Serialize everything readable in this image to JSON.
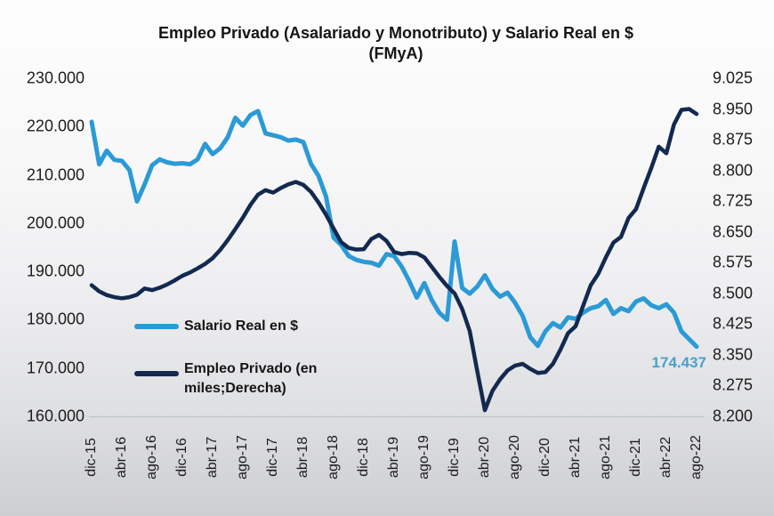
{
  "title": {
    "line1": "Empleo Privado (Asalariado y Monotributo) y Salario Real en $",
    "line2": "(FMyA)"
  },
  "legend": {
    "salario_label": "Salario Real en $",
    "empleo_label_line1": "Empleo Privado (en",
    "empleo_label_line2": "miles;Derecha)"
  },
  "annotation": {
    "last_value_label": "174.437"
  },
  "colors": {
    "salario": "#2b9ad6",
    "empleo": "#13294f",
    "annotation": "#4aa0cd",
    "axis_text": "#1c1c1c",
    "baseline": "#b9babd"
  },
  "axes": {
    "left_ticks": [
      "230.000",
      "220.000",
      "210.000",
      "200.000",
      "190.000",
      "180.000",
      "170.000",
      "160.000"
    ],
    "right_ticks": [
      "9.025",
      "8.950",
      "8.875",
      "8.800",
      "8.725",
      "8.650",
      "8.575",
      "8.500",
      "8.425",
      "8.350",
      "8.275",
      "8.200"
    ],
    "x_ticks": [
      "dic-15",
      "abr-16",
      "ago-16",
      "dic-16",
      "abr-17",
      "ago-17",
      "dic-17",
      "abr-18",
      "ago-18",
      "dic-18",
      "abr-19",
      "ago-19",
      "dic-19",
      "abr-20",
      "ago-20",
      "dic-20",
      "abr-21",
      "ago-21",
      "dic-21",
      "abr-22",
      "ago-22"
    ]
  },
  "chart_data": {
    "type": "line",
    "title": "Empleo Privado (Asalariado y Monotributo) y Salario Real en $ (FMyA)",
    "frequency": "monthly",
    "x_start": "dic-15",
    "x_end": "ago-22",
    "x_tick_labels": [
      "dic-15",
      "abr-16",
      "ago-16",
      "dic-16",
      "abr-17",
      "ago-17",
      "dic-17",
      "abr-18",
      "ago-18",
      "dic-18",
      "abr-19",
      "ago-19",
      "dic-19",
      "abr-20",
      "ago-20",
      "dic-20",
      "abr-21",
      "ago-21",
      "dic-21",
      "abr-22",
      "ago-22"
    ],
    "left_axis": {
      "min": 160000,
      "max": 230000,
      "tick_step": 10000,
      "applies_to": "Salario Real en $"
    },
    "right_axis": {
      "min": 8200,
      "max": 9025,
      "tick_step": 75,
      "applies_to": "Empleo Privado (en miles)"
    },
    "grid": false,
    "legend_position": "inside-left",
    "series": [
      {
        "name": "Salario Real en $",
        "axis": "left",
        "values": [
          221000,
          212200,
          215000,
          213100,
          212900,
          211000,
          204500,
          208000,
          212000,
          213200,
          212600,
          212300,
          212400,
          212200,
          213200,
          216400,
          214300,
          215500,
          217800,
          221800,
          220200,
          222400,
          223200,
          218600,
          218200,
          217800,
          217100,
          217300,
          216800,
          212300,
          209800,
          205500,
          197000,
          195500,
          193200,
          192400,
          192000,
          191800,
          191200,
          193600,
          193200,
          191000,
          188000,
          184600,
          187600,
          184000,
          181400,
          180000,
          196200,
          186600,
          185400,
          186900,
          189200,
          186400,
          184800,
          185600,
          183500,
          180800,
          176400,
          174600,
          177600,
          179300,
          178400,
          180500,
          180200,
          181500,
          182400,
          182800,
          184100,
          181200,
          182400,
          181800,
          183800,
          184400,
          183000,
          182400,
          183200,
          181500,
          177600,
          176000,
          174437
        ]
      },
      {
        "name": "Empleo Privado (en miles;Derecha)",
        "axis": "right",
        "values": [
          8520,
          8505,
          8496,
          8491,
          8488,
          8491,
          8497,
          8512,
          8508,
          8514,
          8522,
          8532,
          8543,
          8551,
          8561,
          8572,
          8586,
          8606,
          8630,
          8657,
          8685,
          8716,
          8741,
          8752,
          8746,
          8757,
          8766,
          8772,
          8765,
          8748,
          8722,
          8692,
          8658,
          8625,
          8611,
          8607,
          8608,
          8633,
          8643,
          8628,
          8601,
          8596,
          8599,
          8598,
          8588,
          8564,
          8540,
          8518,
          8500,
          8462,
          8408,
          8310,
          8215,
          8262,
          8290,
          8312,
          8324,
          8328,
          8316,
          8306,
          8308,
          8328,
          8363,
          8403,
          8420,
          8470,
          8520,
          8548,
          8588,
          8624,
          8638,
          8684,
          8706,
          8757,
          8806,
          8858,
          8842,
          8912,
          8948,
          8950,
          8938
        ]
      }
    ],
    "annotation": {
      "series": "Salario Real en $",
      "x": "ago-22",
      "value": 174437,
      "label": "174.437"
    }
  }
}
